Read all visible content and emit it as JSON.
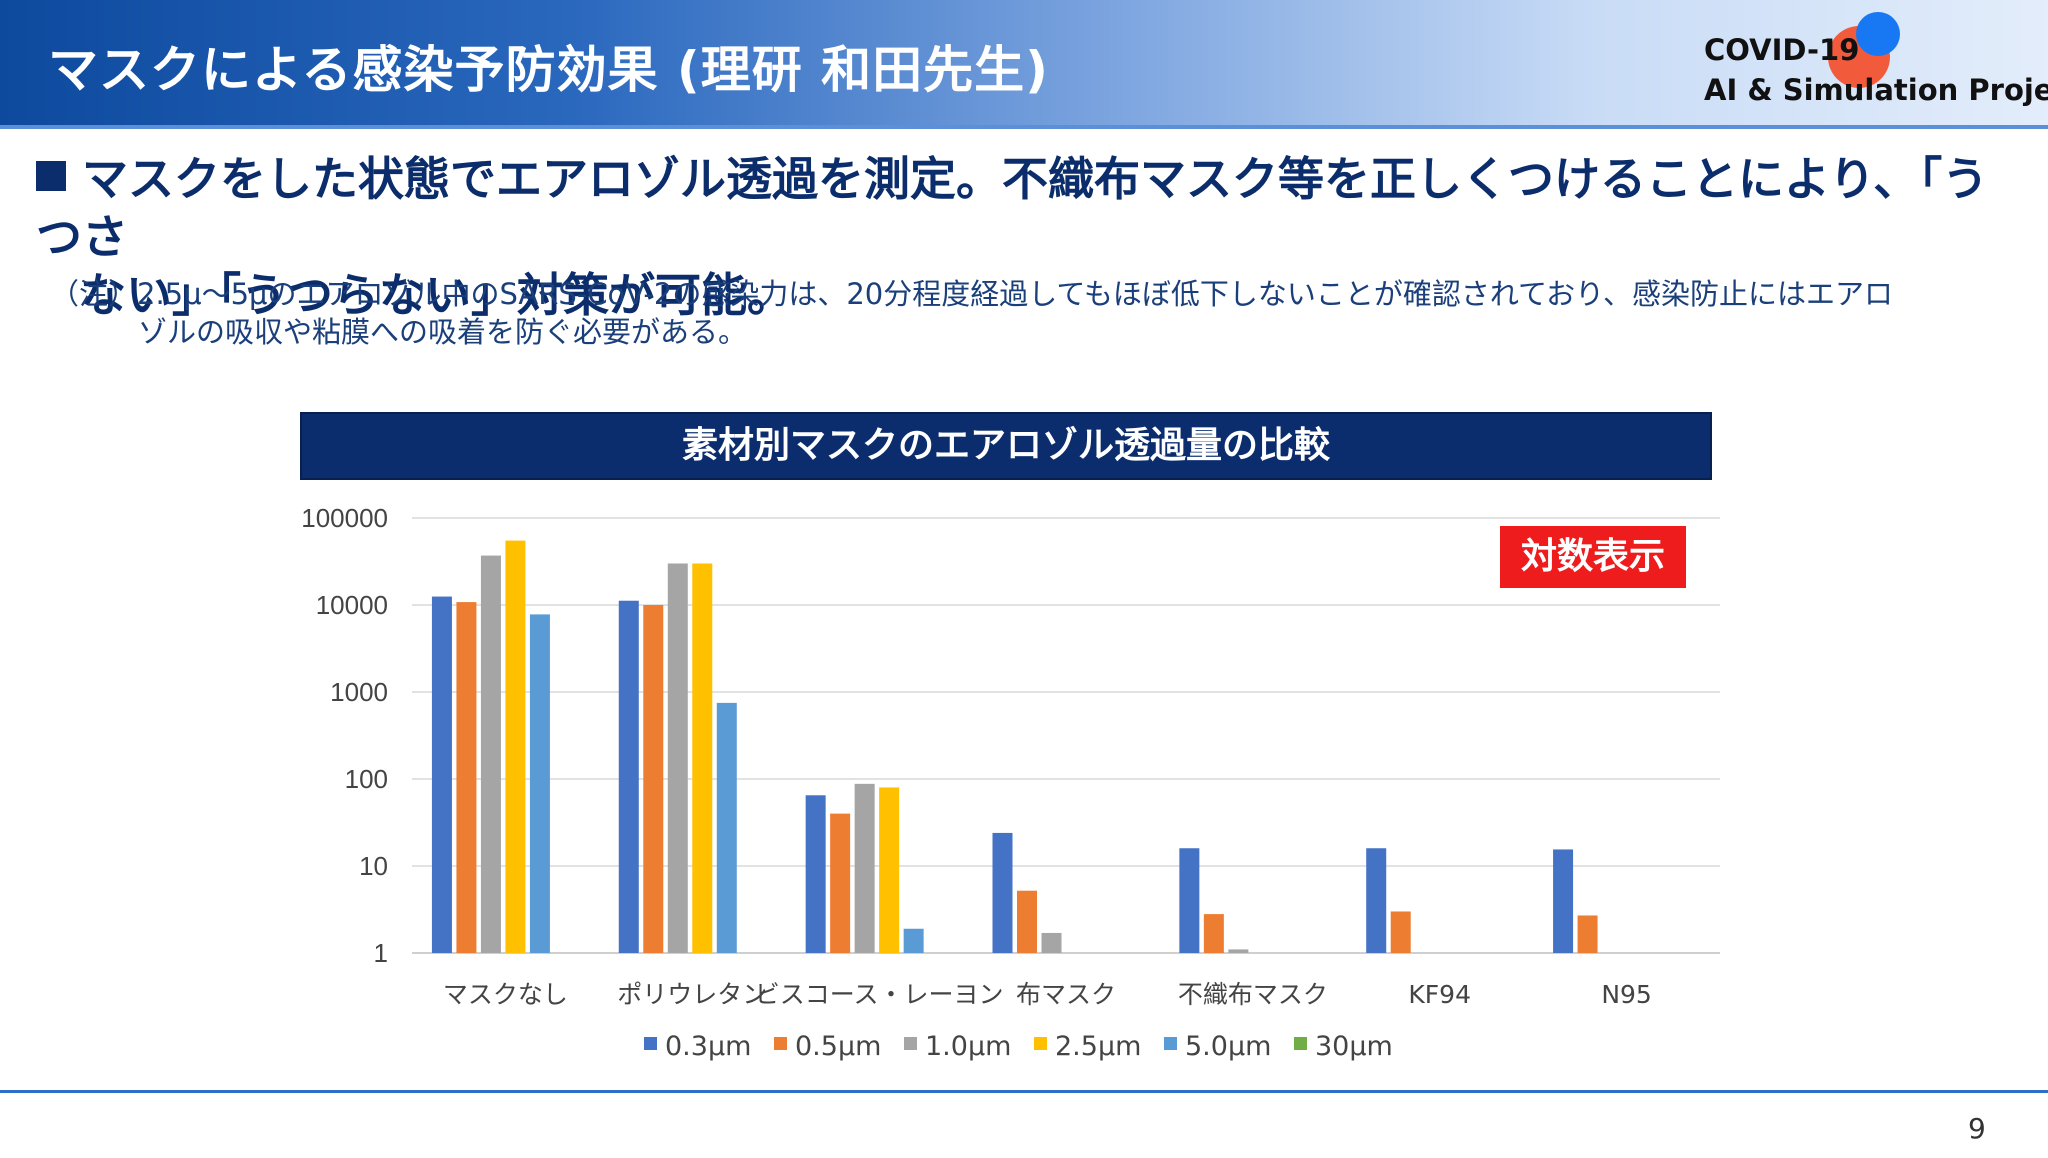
{
  "header": {
    "title": "マスクによる感染予防効果 (理研 和田先生)",
    "brand_line1": "COVID-19",
    "brand_line2": "AI & Simulation Project"
  },
  "headline": {
    "line1": "マスクをした状態でエアロゾル透過を測定。不織布マスク等を正しくつけることにより、「うつさ",
    "line2": "ない」「うつらない」対策が可能。"
  },
  "note": {
    "line1": "（注）2.5μ～5μのエアロゾル中のSARS-CoV-2の感染力は、20分程度経過してもほぼ低下しないことが確認されており、感染防止にはエアロ",
    "line2": "ゾルの吸収や粘膜への吸着を防ぐ必要がある。"
  },
  "badge": "対数表示",
  "page_number": "9",
  "chart_data": {
    "type": "bar",
    "title": "素材別マスクのエアロゾル透過量の比較",
    "scale": "log",
    "ylim": [
      1,
      100000
    ],
    "yticks": [
      "100000",
      "10000",
      "1000",
      "100",
      "10",
      "1"
    ],
    "grid": true,
    "legend_position": "bottom",
    "categories": [
      "マスクなし",
      "ポリウレタン",
      "ビスコース・レーヨン",
      "布マスク",
      "不織布マスク",
      "KF94",
      "N95"
    ],
    "series": [
      {
        "name": "0.3μm",
        "color": "#4472c4",
        "values": [
          12500,
          11200,
          65,
          24,
          16,
          16,
          15.5
        ]
      },
      {
        "name": "0.5μm",
        "color": "#ed7d31",
        "values": [
          10800,
          10000,
          40,
          5.2,
          2.8,
          3,
          2.7
        ]
      },
      {
        "name": "1.0μm",
        "color": "#a5a5a5",
        "values": [
          37000,
          30000,
          88,
          1.7,
          1.1,
          null,
          null
        ]
      },
      {
        "name": "2.5μm",
        "color": "#ffc000",
        "values": [
          55000,
          30000,
          80,
          null,
          null,
          null,
          null
        ]
      },
      {
        "name": "5.0μm",
        "color": "#5b9bd5",
        "values": [
          7800,
          750,
          1.9,
          null,
          null,
          null,
          null
        ]
      },
      {
        "name": "30μm",
        "color": "#70ad47",
        "values": [
          null,
          null,
          null,
          null,
          null,
          null,
          null
        ]
      }
    ]
  }
}
